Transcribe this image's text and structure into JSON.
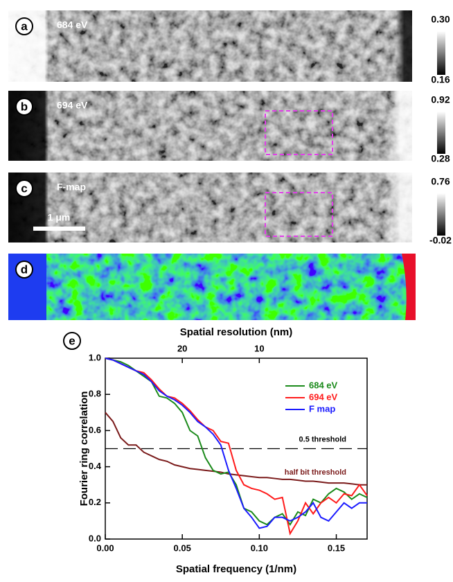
{
  "panels": [
    {
      "label": "a",
      "text": "684 eV",
      "colorbar_max": "0.30",
      "colorbar_min": "0.16"
    },
    {
      "label": "b",
      "text": "694 eV",
      "colorbar_max": "0.92",
      "colorbar_min": "0.28"
    },
    {
      "label": "c",
      "text": "F-map",
      "colorbar_max": "0.76",
      "colorbar_min": "-0.02",
      "scale_bar": "1 μm"
    },
    {
      "label": "d"
    }
  ],
  "chart_data": {
    "type": "line",
    "panel_label": "e",
    "x_label": "Spatial frequency (1/nm)",
    "y_label": "Fourier ring correlation",
    "x2_label": "Spatial resolution (nm)",
    "xlim": [
      0,
      0.17
    ],
    "ylim": [
      0,
      1.0
    ],
    "xticks": [
      {
        "value": 0,
        "label": "0.00"
      },
      {
        "value": 0.05,
        "label": "0.05"
      },
      {
        "value": 0.1,
        "label": "0.10"
      },
      {
        "value": 0.15,
        "label": "0.15"
      }
    ],
    "yticks": [
      {
        "value": 0,
        "label": "0.0"
      },
      {
        "value": 0.2,
        "label": "0.2"
      },
      {
        "value": 0.4,
        "label": "0.4"
      },
      {
        "value": 0.6,
        "label": "0.6"
      },
      {
        "value": 0.8,
        "label": "0.8"
      },
      {
        "value": 1.0,
        "label": "1.0"
      }
    ],
    "x2ticks": [
      20,
      10
    ],
    "x": [
      0,
      0.005,
      0.01,
      0.015,
      0.02,
      0.025,
      0.03,
      0.035,
      0.04,
      0.045,
      0.05,
      0.055,
      0.06,
      0.065,
      0.07,
      0.075,
      0.08,
      0.085,
      0.09,
      0.095,
      0.1,
      0.105,
      0.11,
      0.115,
      0.12,
      0.125,
      0.13,
      0.135,
      0.14,
      0.145,
      0.15,
      0.155,
      0.16,
      0.165,
      0.17
    ],
    "series": [
      {
        "name": "684 eV",
        "color": "#1a8a1a",
        "values": [
          1.0,
          0.99,
          0.98,
          0.96,
          0.93,
          0.9,
          0.87,
          0.79,
          0.78,
          0.75,
          0.7,
          0.6,
          0.57,
          0.45,
          0.38,
          0.36,
          0.37,
          0.3,
          0.17,
          0.15,
          0.1,
          0.08,
          0.12,
          0.14,
          0.08,
          0.15,
          0.13,
          0.22,
          0.2,
          0.25,
          0.28,
          0.26,
          0.22,
          0.25,
          0.23
        ]
      },
      {
        "name": "694 eV",
        "color": "#ff1a1a",
        "values": [
          1.0,
          0.99,
          0.97,
          0.95,
          0.93,
          0.92,
          0.88,
          0.83,
          0.79,
          0.78,
          0.75,
          0.71,
          0.66,
          0.62,
          0.6,
          0.54,
          0.53,
          0.38,
          0.3,
          0.28,
          0.27,
          0.25,
          0.22,
          0.23,
          0.03,
          0.1,
          0.2,
          0.14,
          0.2,
          0.23,
          0.2,
          0.25,
          0.24,
          0.3,
          0.24
        ]
      },
      {
        "name": "F map",
        "color": "#1a1aff",
        "values": [
          1.0,
          0.99,
          0.97,
          0.95,
          0.93,
          0.91,
          0.87,
          0.82,
          0.79,
          0.77,
          0.74,
          0.7,
          0.65,
          0.62,
          0.58,
          0.52,
          0.38,
          0.28,
          0.17,
          0.12,
          0.06,
          0.07,
          0.12,
          0.12,
          0.1,
          0.12,
          0.15,
          0.2,
          0.12,
          0.1,
          0.15,
          0.2,
          0.17,
          0.2,
          0.2
        ]
      }
    ],
    "half_bit_threshold": {
      "label": "half bit threshold",
      "color": "#7a1a1a",
      "values": [
        0.7,
        0.65,
        0.56,
        0.52,
        0.52,
        0.48,
        0.46,
        0.44,
        0.43,
        0.41,
        0.4,
        0.39,
        0.385,
        0.38,
        0.375,
        0.37,
        0.36,
        0.355,
        0.35,
        0.345,
        0.34,
        0.34,
        0.335,
        0.33,
        0.33,
        0.325,
        0.32,
        0.32,
        0.315,
        0.31,
        0.31,
        0.31,
        0.305,
        0.3,
        0.3
      ]
    },
    "threshold": {
      "value": 0.5,
      "label": "0.5 threshold"
    },
    "legend": "upper right"
  }
}
